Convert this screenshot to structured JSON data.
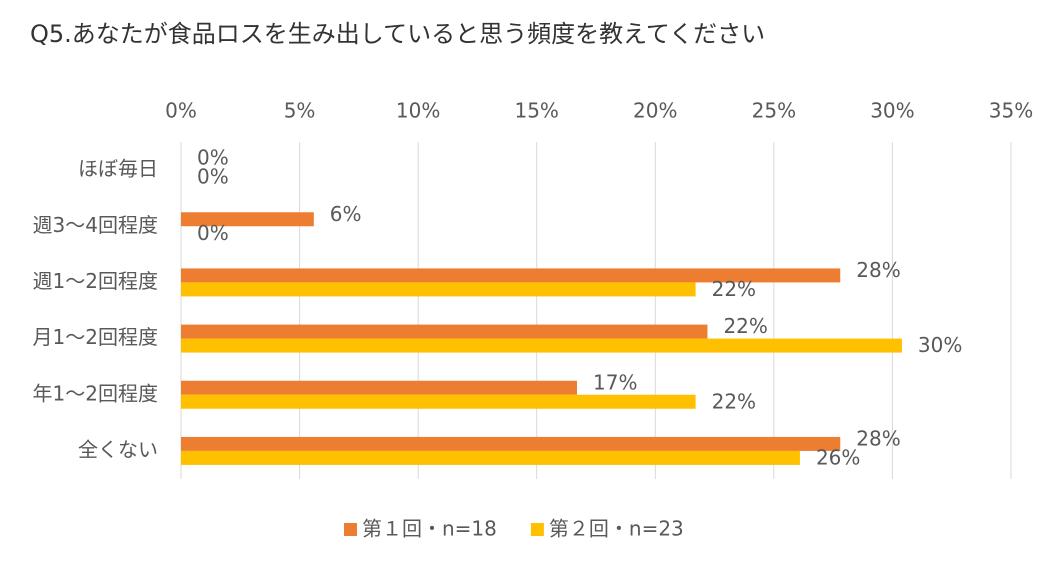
{
  "chart_data": {
    "type": "hbar",
    "title": "Q5.あなたが食品ロスを生み出していると思う頻度を教えてください",
    "categories": [
      "ほぼ毎日",
      "週3〜4回程度",
      "週1〜2回程度",
      "月1〜2回程度",
      "年1〜2回程度",
      "全くない"
    ],
    "series": [
      {
        "name": "第１回・n=18",
        "color": "#ED7D31",
        "values": [
          0,
          5.6,
          27.8,
          22.2,
          16.7,
          27.8
        ],
        "value_labels": [
          "0%",
          "6%",
          "28%",
          "22%",
          "17%",
          "28%"
        ]
      },
      {
        "name": "第２回・n=23",
        "color": "#FFC000",
        "values": [
          0,
          0,
          21.7,
          30.4,
          21.7,
          26.1
        ],
        "value_labels": [
          "0%",
          "0%",
          "22%",
          "30%",
          "22%",
          "26%"
        ]
      }
    ],
    "xlim": [
      0,
      35
    ],
    "xticks": [
      {
        "value": 0,
        "label": "0%"
      },
      {
        "value": 5,
        "label": "5%"
      },
      {
        "value": 10,
        "label": "10%"
      },
      {
        "value": 15,
        "label": "15%"
      },
      {
        "value": 20,
        "label": "20%"
      },
      {
        "value": 25,
        "label": "25%"
      },
      {
        "value": 30,
        "label": "30%"
      },
      {
        "value": 35,
        "label": "35%"
      }
    ],
    "grid": true,
    "legend": "bottom"
  }
}
